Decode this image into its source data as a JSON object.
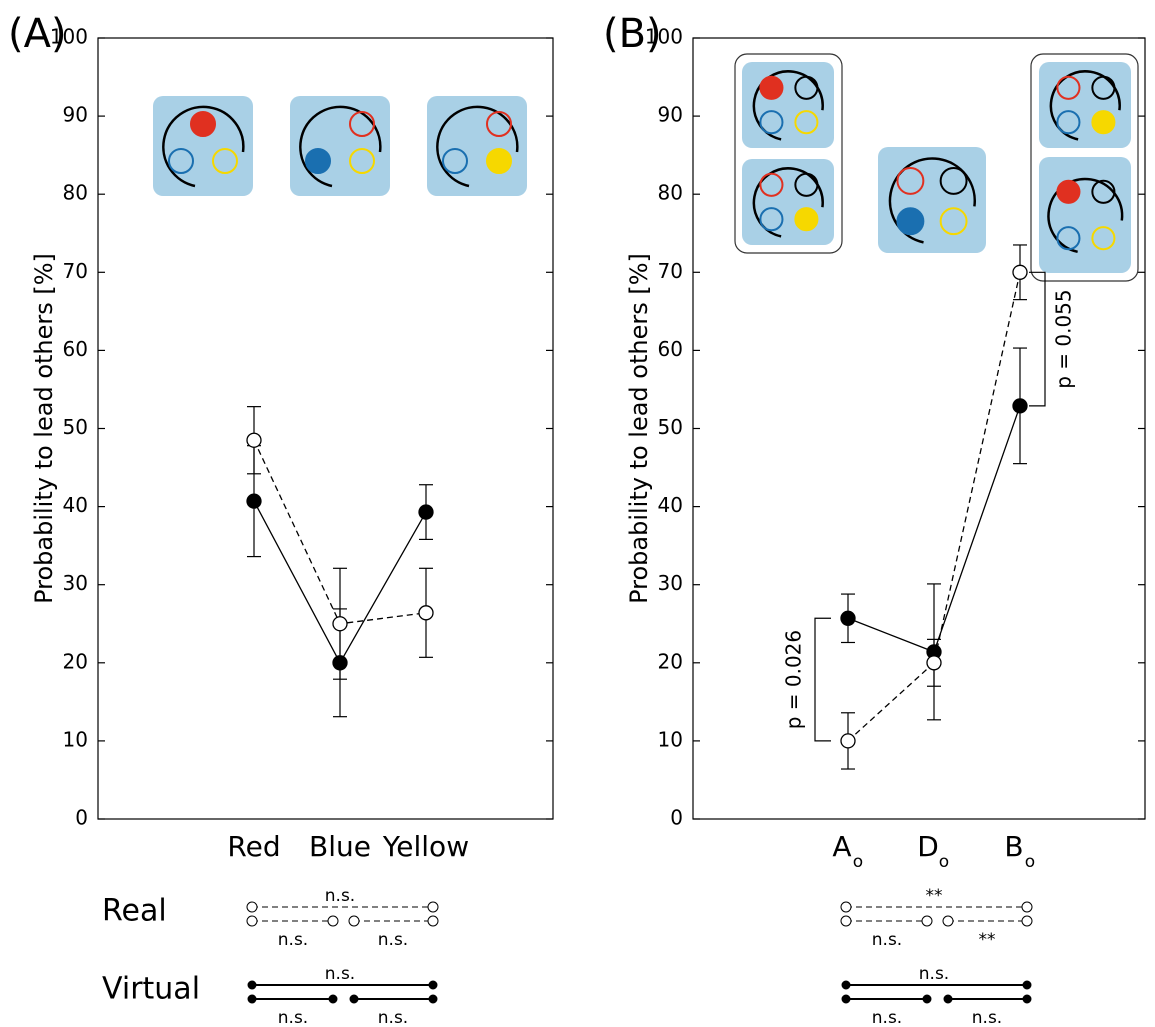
{
  "chart_data": [
    {
      "type": "line",
      "panel_label": "(A)",
      "y_label": "Probability to lead others [%]",
      "categories": [
        "Red",
        "Blue",
        "Yellow"
      ],
      "ylim": [
        0,
        100
      ],
      "yticks": [
        0,
        10,
        20,
        30,
        40,
        50,
        60,
        70,
        80,
        90,
        100
      ],
      "series": [
        {
          "name": "Virtual",
          "color": "#000000",
          "marker_fill": "#000000",
          "linestyle": "solid",
          "values": [
            40.7,
            20,
            39.3
          ],
          "errors": [
            7.1,
            6.9,
            3.5
          ],
          "comparisons": [
            "n.s.",
            "n.s.",
            "n.s."
          ]
        },
        {
          "name": "Real",
          "color": "#000000",
          "marker_fill": "#ffffff",
          "linestyle": "dashed",
          "values": [
            48.5,
            25,
            26.4
          ],
          "errors": [
            4.3,
            7.1,
            5.7
          ],
          "comparisons": [
            "n.s.",
            "n.s.",
            "n.s."
          ]
        }
      ]
    },
    {
      "type": "line",
      "panel_label": "(B)",
      "y_label": "Probability to lead others [%]",
      "categories": [
        "A",
        "D",
        "B"
      ],
      "category_subscript": "o",
      "ylim": [
        0,
        100
      ],
      "yticks": [
        0,
        10,
        20,
        30,
        40,
        50,
        60,
        70,
        80,
        90,
        100
      ],
      "series": [
        {
          "name": "Virtual",
          "color": "#000000",
          "marker_fill": "#000000",
          "linestyle": "solid",
          "values": [
            25.7,
            21.4,
            52.9
          ],
          "errors": [
            3.1,
            8.7,
            7.4
          ],
          "comparisons": [
            "n.s.",
            "n.s.",
            "n.s."
          ]
        },
        {
          "name": "Real",
          "color": "#000000",
          "marker_fill": "#ffffff",
          "linestyle": "dashed",
          "values": [
            10,
            20,
            70
          ],
          "errors": [
            3.6,
            3.0,
            3.5
          ],
          "comparisons": [
            "**",
            "n.s.",
            "**"
          ]
        }
      ],
      "annotations": [
        {
          "text": "p = 0.026"
        },
        {
          "text": "p = 0.055"
        }
      ]
    }
  ]
}
